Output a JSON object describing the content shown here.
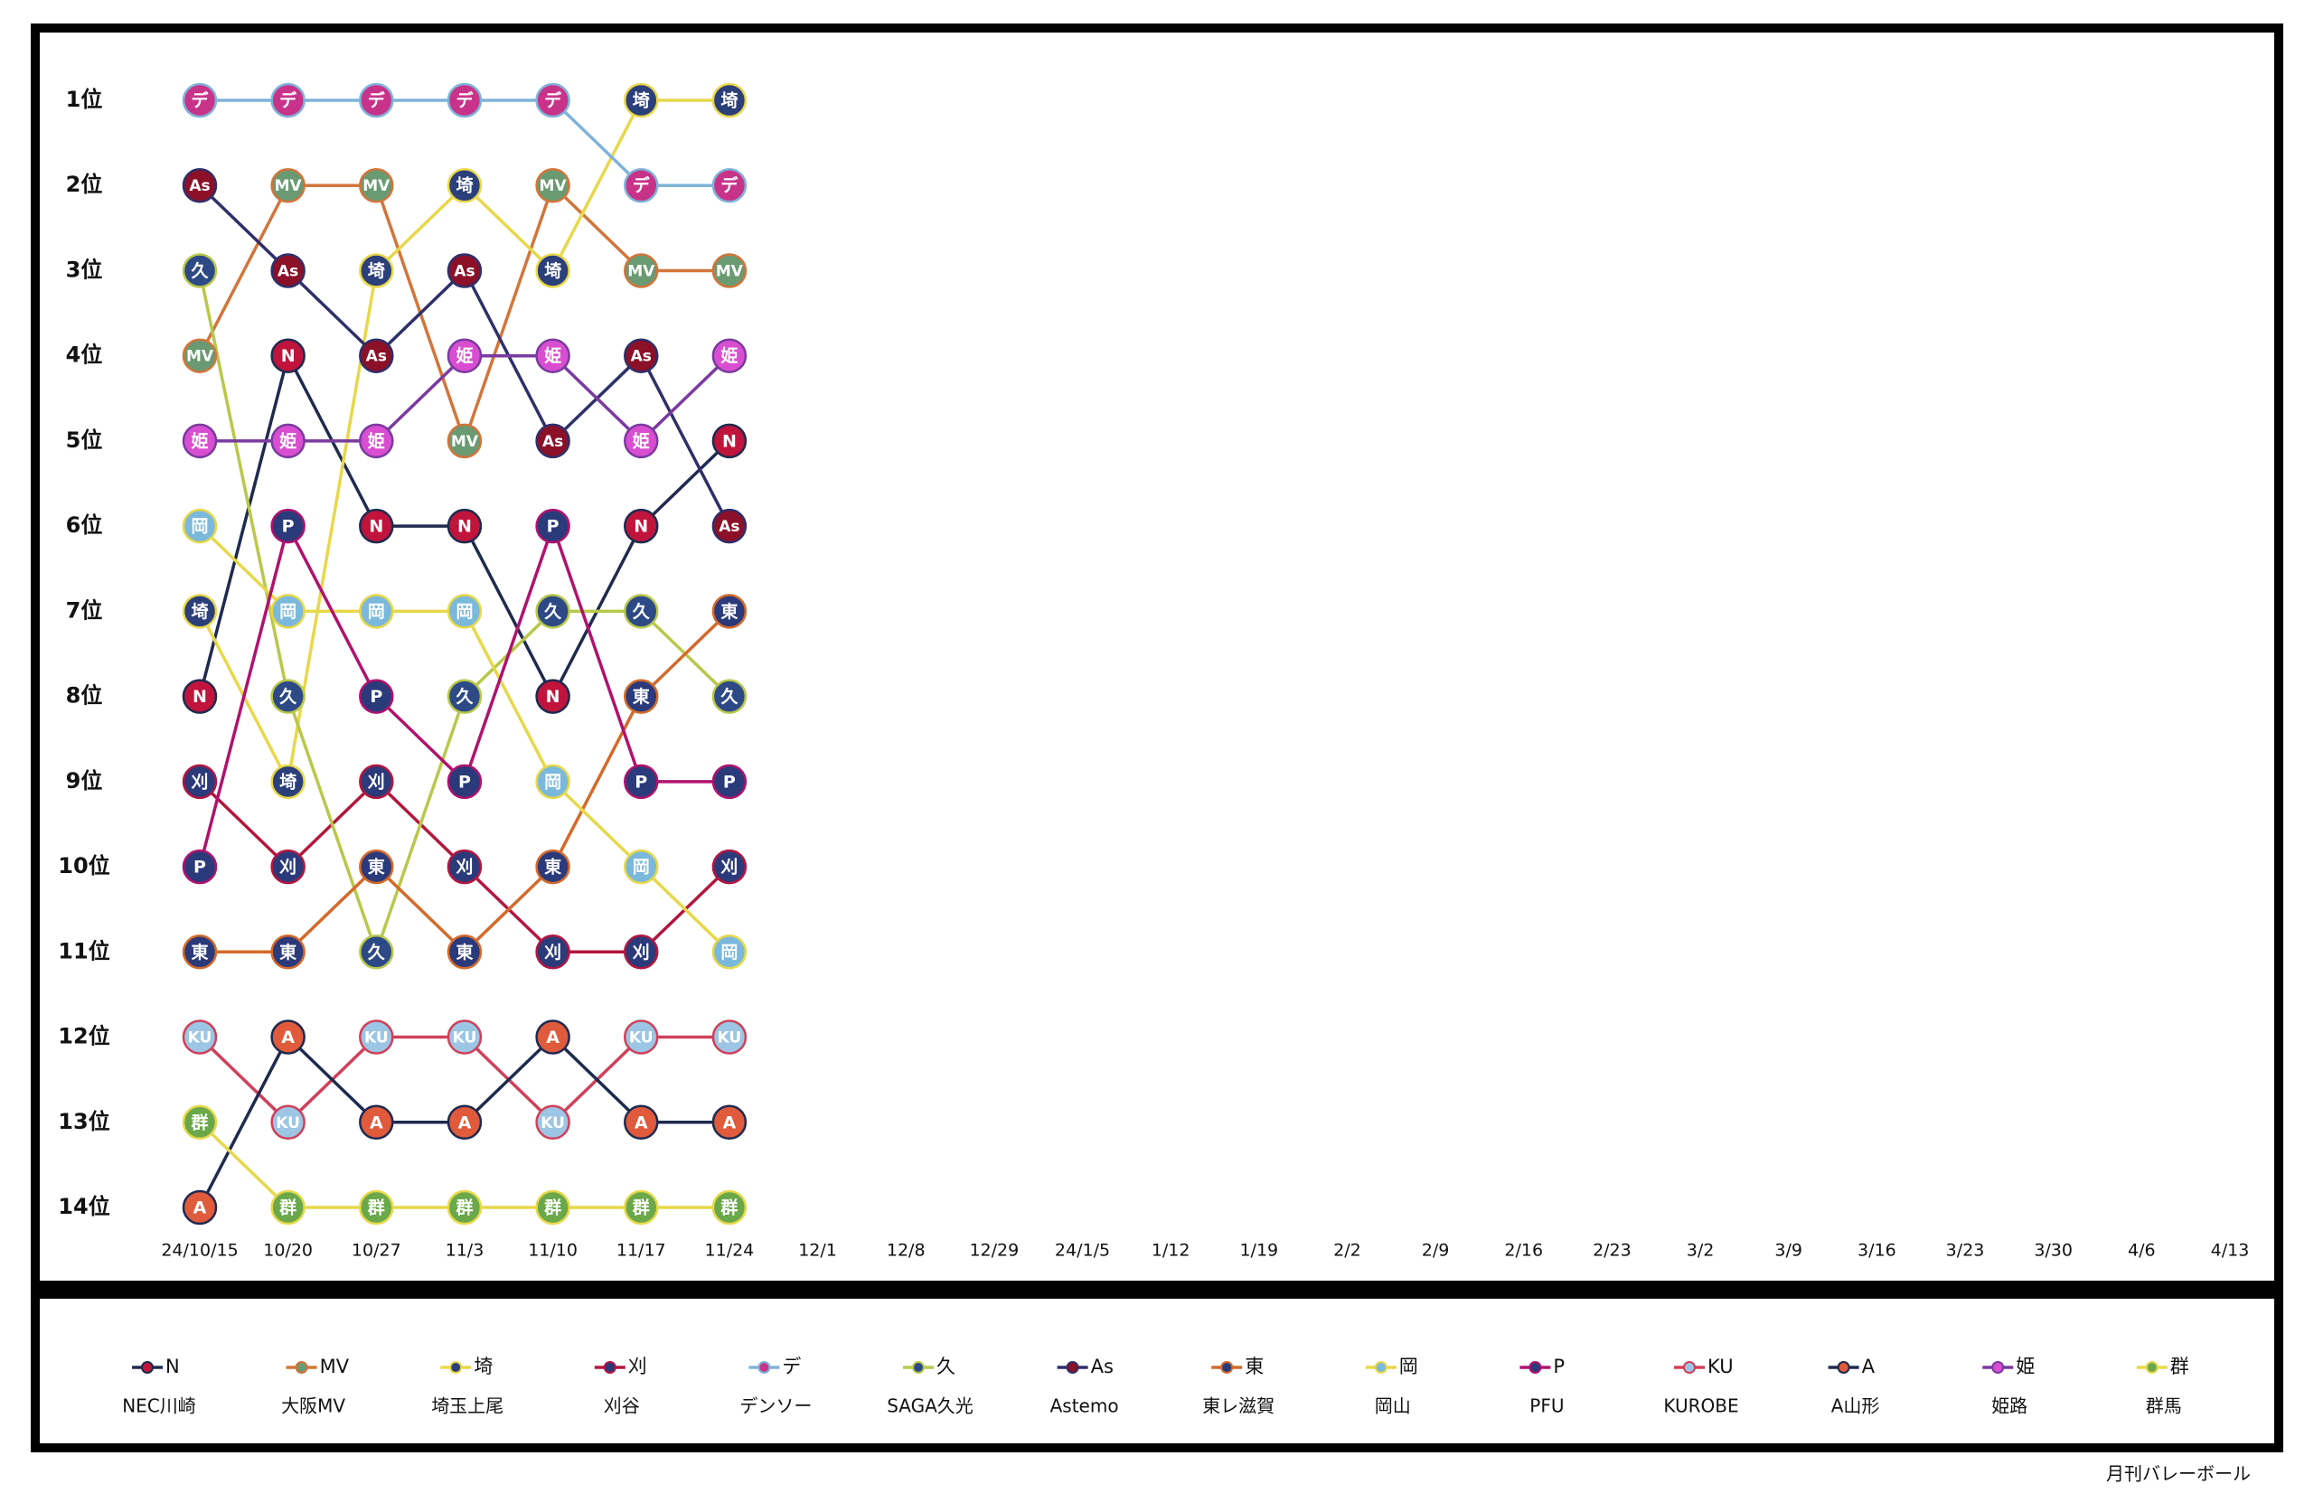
{
  "chart_data": {
    "type": "bump",
    "categories": [
      "24/10/15",
      "10/20",
      "10/27",
      "11/3",
      "11/10",
      "11/17",
      "11/24",
      "12/1",
      "12/8",
      "12/29",
      "24/1/5",
      "1/12",
      "1/19",
      "2/2",
      "2/9",
      "2/16",
      "2/23",
      "3/2",
      "3/9",
      "3/16",
      "3/23",
      "3/30",
      "4/6",
      "4/13"
    ],
    "ylim": [
      1,
      14
    ],
    "yticks": [
      {
        "value": 1,
        "label": "1位"
      },
      {
        "value": 2,
        "label": "2位"
      },
      {
        "value": 3,
        "label": "3位"
      },
      {
        "value": 4,
        "label": "4位"
      },
      {
        "value": 5,
        "label": "5位"
      },
      {
        "value": 6,
        "label": "6位"
      },
      {
        "value": 7,
        "label": "7位"
      },
      {
        "value": 8,
        "label": "8位"
      },
      {
        "value": 9,
        "label": "9位"
      },
      {
        "value": 10,
        "label": "10位"
      },
      {
        "value": 11,
        "label": "11位"
      },
      {
        "value": 12,
        "label": "12位"
      },
      {
        "value": 13,
        "label": "13位"
      },
      {
        "value": 14,
        "label": "14位"
      }
    ],
    "y_inverted": true,
    "series": [
      {
        "name": "NEC川崎",
        "code": "N",
        "color": "#1f2a4f",
        "marker_color": "#c0143c",
        "values": [
          8,
          4,
          6,
          6,
          8,
          6,
          5,
          null,
          null,
          null,
          null,
          null,
          null,
          null,
          null,
          null,
          null,
          null,
          null,
          null,
          null,
          null,
          null,
          null
        ]
      },
      {
        "name": "大阪MV",
        "code": "MV",
        "color": "#d2753a",
        "marker_color": "#6a9a72",
        "values": [
          4,
          2,
          2,
          5,
          2,
          3,
          3,
          null,
          null,
          null,
          null,
          null,
          null,
          null,
          null,
          null,
          null,
          null,
          null,
          null,
          null,
          null,
          null,
          null
        ]
      },
      {
        "name": "埼玉上尾",
        "code": "埼",
        "color": "#e8d84a",
        "marker_color": "#2b3f7a",
        "values": [
          7,
          9,
          3,
          2,
          3,
          1,
          1,
          null,
          null,
          null,
          null,
          null,
          null,
          null,
          null,
          null,
          null,
          null,
          null,
          null,
          null,
          null,
          null,
          null
        ]
      },
      {
        "name": "刈谷",
        "code": "刈",
        "color": "#b3163f",
        "marker_color": "#2b3a7a",
        "values": [
          9,
          10,
          9,
          10,
          11,
          11,
          10,
          null,
          null,
          null,
          null,
          null,
          null,
          null,
          null,
          null,
          null,
          null,
          null,
          null,
          null,
          null,
          null,
          null
        ]
      },
      {
        "name": "デンソー",
        "code": "デ",
        "color": "#7fb3d9",
        "marker_color": "#c8338a",
        "values": [
          1,
          1,
          1,
          1,
          1,
          2,
          2,
          null,
          null,
          null,
          null,
          null,
          null,
          null,
          null,
          null,
          null,
          null,
          null,
          null,
          null,
          null,
          null,
          null
        ]
      },
      {
        "name": "SAGA久光",
        "code": "久",
        "color": "#b8c84a",
        "marker_color": "#2d4a86",
        "values": [
          3,
          8,
          11,
          8,
          7,
          7,
          8,
          null,
          null,
          null,
          null,
          null,
          null,
          null,
          null,
          null,
          null,
          null,
          null,
          null,
          null,
          null,
          null,
          null
        ]
      },
      {
        "name": "Astemo",
        "code": "As",
        "color": "#2f2f6a",
        "marker_color": "#8b1028",
        "values": [
          2,
          3,
          4,
          3,
          5,
          4,
          6,
          null,
          null,
          null,
          null,
          null,
          null,
          null,
          null,
          null,
          null,
          null,
          null,
          null,
          null,
          null,
          null,
          null
        ]
      },
      {
        "name": "東レ滋賀",
        "code": "東",
        "color": "#d46a2a",
        "marker_color": "#2b3a7a",
        "values": [
          11,
          11,
          10,
          11,
          10,
          8,
          7,
          null,
          null,
          null,
          null,
          null,
          null,
          null,
          null,
          null,
          null,
          null,
          null,
          null,
          null,
          null,
          null,
          null
        ]
      },
      {
        "name": "岡山",
        "code": "岡",
        "color": "#e6d84a",
        "marker_color": "#7ab8dc",
        "values": [
          6,
          7,
          7,
          7,
          9,
          10,
          11,
          null,
          null,
          null,
          null,
          null,
          null,
          null,
          null,
          null,
          null,
          null,
          null,
          null,
          null,
          null,
          null,
          null
        ]
      },
      {
        "name": "PFU",
        "code": "P",
        "color": "#b0126e",
        "marker_color": "#2b3a7a",
        "values": [
          10,
          6,
          8,
          9,
          6,
          9,
          9,
          null,
          null,
          null,
          null,
          null,
          null,
          null,
          null,
          null,
          null,
          null,
          null,
          null,
          null,
          null,
          null,
          null
        ]
      },
      {
        "name": "KUROBE",
        "code": "KU",
        "color": "#d0405a",
        "marker_color": "#9cc6e4",
        "values": [
          12,
          13,
          12,
          12,
          13,
          12,
          12,
          null,
          null,
          null,
          null,
          null,
          null,
          null,
          null,
          null,
          null,
          null,
          null,
          null,
          null,
          null,
          null,
          null
        ]
      },
      {
        "name": "A山形",
        "code": "A",
        "color": "#1f2a4f",
        "marker_color": "#e05a3c",
        "values": [
          14,
          12,
          13,
          13,
          12,
          13,
          13,
          null,
          null,
          null,
          null,
          null,
          null,
          null,
          null,
          null,
          null,
          null,
          null,
          null,
          null,
          null,
          null,
          null
        ]
      },
      {
        "name": "姫路",
        "code": "姫",
        "color": "#7a3aa0",
        "marker_color": "#d94ed0",
        "values": [
          5,
          5,
          5,
          4,
          4,
          5,
          4,
          null,
          null,
          null,
          null,
          null,
          null,
          null,
          null,
          null,
          null,
          null,
          null,
          null,
          null,
          null,
          null,
          null
        ]
      },
      {
        "name": "群馬",
        "code": "群",
        "color": "#e6d84a",
        "marker_color": "#6aa84a",
        "values": [
          13,
          14,
          14,
          14,
          14,
          14,
          14,
          null,
          null,
          null,
          null,
          null,
          null,
          null,
          null,
          null,
          null,
          null,
          null,
          null,
          null,
          null,
          null,
          null
        ]
      }
    ],
    "source": "月刊バレーボール"
  }
}
